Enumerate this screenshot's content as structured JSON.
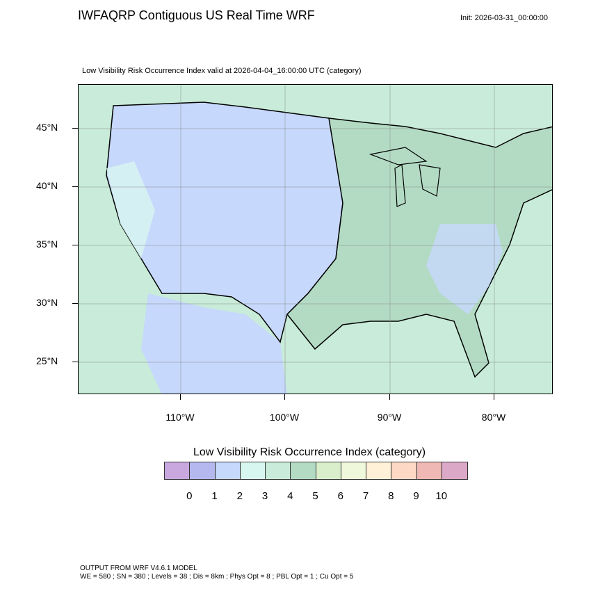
{
  "header": {
    "title": "IWFAQRP Contiguous US Real Time WRF",
    "init": "Init: 2026-03-31_00:00:00",
    "subtitle": "Low Visibility Risk Occurrence Index valid at 2026-04-04_16:00:00 UTC   (category)"
  },
  "map": {
    "lat_labels": [
      "45°N",
      "40°N",
      "35°N",
      "30°N",
      "25°N"
    ],
    "lon_labels": [
      "110°W",
      "100°W",
      "90°W",
      "80°W"
    ],
    "region": "Contiguous US",
    "colors": {
      "ocean": "#c8ecd9",
      "west": "#c6d8fc",
      "east": "#b3dbc4",
      "land_light": "#d8f6f0"
    }
  },
  "colorbar": {
    "title": "Low Visibility Risk Occurrence Index  (category)",
    "colors": [
      "#c8a8de",
      "#b5b8ef",
      "#c6d8fc",
      "#d8f6f0",
      "#c8ecd9",
      "#b3dbc4",
      "#d9efcb",
      "#f0f8dc",
      "#fff1d8",
      "#fdd8c4",
      "#f0b8b4",
      "#dca8c8"
    ],
    "labels": [
      "0",
      "1",
      "2",
      "3",
      "4",
      "5",
      "6",
      "7",
      "8",
      "9",
      "10"
    ]
  },
  "footer": {
    "line1": "OUTPUT FROM WRF V4.6.1 MODEL",
    "line2": "WE = 580 ; SN = 380 ; Levels = 38 ; Dis = 8km ; Phys Opt = 8 ; PBL Opt = 1 ; Cu Opt = 5"
  }
}
